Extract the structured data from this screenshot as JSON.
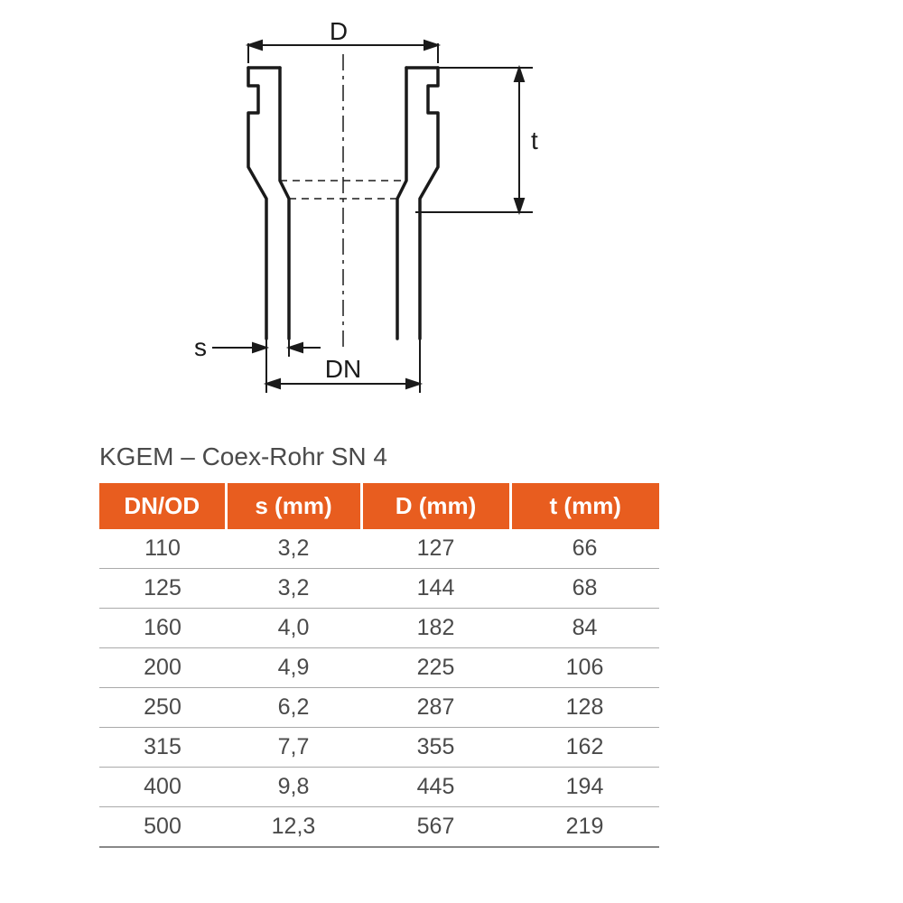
{
  "diagram": {
    "labels": {
      "D": "D",
      "t": "t",
      "s": "s",
      "DN": "DN"
    },
    "stroke_color": "#1a1a1a",
    "stroke_width_main": 3,
    "stroke_width_dim": 2
  },
  "table": {
    "title": "KGEM – Coex-Rohr SN 4",
    "header_bg": "#e85d1f",
    "header_fg": "#ffffff",
    "text_color": "#4a4a4a",
    "row_border_color": "#aaaaaa",
    "title_fontsize": 28,
    "header_fontsize": 26,
    "cell_fontsize": 25,
    "columns": [
      "DN/OD",
      "s (mm)",
      "D (mm)",
      "t (mm)"
    ],
    "rows": [
      [
        "110",
        "3,2",
        "127",
        "66"
      ],
      [
        "125",
        "3,2",
        "144",
        "68"
      ],
      [
        "160",
        "4,0",
        "182",
        "84"
      ],
      [
        "200",
        "4,9",
        "225",
        "106"
      ],
      [
        "250",
        "6,2",
        "287",
        "128"
      ],
      [
        "315",
        "7,7",
        "355",
        "162"
      ],
      [
        "400",
        "9,8",
        "445",
        "194"
      ],
      [
        "500",
        "12,3",
        "567",
        "219"
      ]
    ]
  }
}
